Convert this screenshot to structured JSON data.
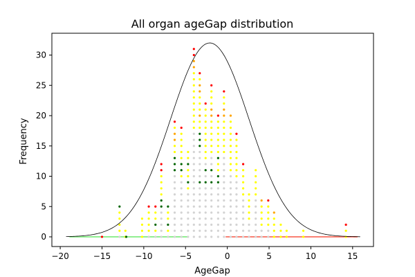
{
  "chart_data": {
    "type": "scatter",
    "title": "All organ ageGap distribution",
    "xlabel": "AgeGap",
    "ylabel": "Frequency",
    "xlim": [
      -21,
      17.5
    ],
    "ylim": [
      -1.6,
      33.6
    ],
    "xticks": [
      -20,
      -15,
      -10,
      -5,
      0,
      5,
      10,
      15
    ],
    "yticks": [
      0,
      5,
      10,
      15,
      20,
      25,
      30
    ],
    "grid": false,
    "legend": "none",
    "fit_curve": {
      "kind": "gaussian",
      "peak": 32,
      "mean": -2.1,
      "sd": 4.7,
      "x_range": [
        -19.3,
        15.9
      ],
      "color": "#000000"
    },
    "colors": {
      "grey": "#d3d3d3",
      "yellow": "#ffff00",
      "orange": "#ffa500",
      "red": "#ff0000",
      "green": "#006400",
      "lightgreen": "#90ee90",
      "salmon": "#fa8072"
    },
    "columns": [
      {
        "x": -12.9,
        "height": 5,
        "top": {
          "color": "green",
          "count": 1
        }
      },
      {
        "x": -12.2,
        "height": 1,
        "top": {
          "color": "yellow",
          "count": 1
        }
      },
      {
        "x": -10.2,
        "height": 3,
        "top": {
          "color": "yellow",
          "count": 1
        }
      },
      {
        "x": -9.4,
        "height": 5,
        "top": {
          "color": "red",
          "count": 1
        }
      },
      {
        "x": -8.6,
        "height": 5,
        "top": {
          "color": "red",
          "count": 1
        },
        "extra": [
          {
            "y": 2,
            "color": "green"
          }
        ]
      },
      {
        "x": -7.9,
        "height": 12,
        "top": {
          "color": "red",
          "count": 2
        },
        "extra": [
          {
            "y": 5,
            "color": "green"
          },
          {
            "y": 6,
            "color": "green"
          }
        ]
      },
      {
        "x": -7.1,
        "height": 5,
        "top": {
          "color": "green",
          "count": 1
        },
        "extra": [
          {
            "y": 2,
            "color": "green"
          }
        ]
      },
      {
        "x": -6.3,
        "height": 19,
        "top": {
          "color": "red",
          "count": 1
        },
        "extra": [
          {
            "y": 17,
            "color": "orange"
          },
          {
            "y": 16,
            "color": "orange"
          },
          {
            "y": 13,
            "color": "green"
          },
          {
            "y": 12,
            "color": "green"
          },
          {
            "y": 11,
            "color": "green"
          }
        ]
      },
      {
        "x": -5.5,
        "height": 18,
        "top": {
          "color": "red",
          "count": 1
        },
        "extra": [
          {
            "y": 12,
            "color": "green"
          },
          {
            "y": 11,
            "color": "green"
          }
        ]
      },
      {
        "x": -4.7,
        "height": 14,
        "top": {
          "color": "yellow",
          "count": 1
        },
        "extra": [
          {
            "y": 12,
            "color": "green"
          },
          {
            "y": 9,
            "color": "green"
          }
        ]
      },
      {
        "x": -4.0,
        "height": 31,
        "top": {
          "color": "red",
          "count": 2
        },
        "extra": [
          {
            "y": 29,
            "color": "orange"
          },
          {
            "y": 28,
            "color": "orange"
          }
        ]
      },
      {
        "x": -3.3,
        "height": 27,
        "top": {
          "color": "red",
          "count": 1
        },
        "extra": [
          {
            "y": 25,
            "color": "orange"
          },
          {
            "y": 24,
            "color": "orange"
          },
          {
            "y": 20,
            "color": "orange"
          },
          {
            "y": 17,
            "color": "green"
          },
          {
            "y": 16,
            "color": "green"
          },
          {
            "y": 15,
            "color": "green"
          },
          {
            "y": 9,
            "color": "green"
          }
        ]
      },
      {
        "x": -2.6,
        "height": 22,
        "top": {
          "color": "red",
          "count": 1
        },
        "extra": [
          {
            "y": 11,
            "color": "green"
          },
          {
            "y": 9,
            "color": "green"
          }
        ]
      },
      {
        "x": -1.9,
        "height": 25,
        "top": {
          "color": "red",
          "count": 1
        },
        "extra": [
          {
            "y": 21,
            "color": "orange"
          },
          {
            "y": 20,
            "color": "orange"
          },
          {
            "y": 11,
            "color": "green"
          },
          {
            "y": 9,
            "color": "green"
          }
        ]
      },
      {
        "x": -1.1,
        "height": 20,
        "top": {
          "color": "red",
          "count": 1
        },
        "extra": [
          {
            "y": 13,
            "color": "green"
          },
          {
            "y": 10,
            "color": "green"
          },
          {
            "y": 9,
            "color": "green"
          }
        ]
      },
      {
        "x": -0.4,
        "height": 24,
        "top": {
          "color": "red",
          "count": 1
        },
        "extra": [
          {
            "y": 21,
            "color": "orange"
          },
          {
            "y": 20,
            "color": "orange"
          }
        ]
      },
      {
        "x": 0.4,
        "height": 20,
        "top": {
          "color": "orange",
          "count": 1
        }
      },
      {
        "x": 1.1,
        "height": 17,
        "top": {
          "color": "red",
          "count": 1
        }
      },
      {
        "x": 1.9,
        "height": 12,
        "top": {
          "color": "red",
          "count": 1
        }
      },
      {
        "x": 2.6,
        "height": 7,
        "top": {
          "color": "yellow",
          "count": 1
        }
      },
      {
        "x": 3.4,
        "height": 11,
        "top": {
          "color": "yellow",
          "count": 1
        }
      },
      {
        "x": 4.1,
        "height": 6,
        "top": {
          "color": "orange",
          "count": 1
        }
      },
      {
        "x": 4.9,
        "height": 6,
        "top": {
          "color": "red",
          "count": 1
        }
      },
      {
        "x": 5.6,
        "height": 4,
        "top": {
          "color": "orange",
          "count": 1
        }
      },
      {
        "x": 6.4,
        "height": 2,
        "top": {
          "color": "yellow",
          "count": 1
        }
      },
      {
        "x": 7.1,
        "height": 1,
        "top": {
          "color": "yellow",
          "count": 1
        }
      },
      {
        "x": 9.1,
        "height": 1,
        "top": {
          "color": "yellow",
          "count": 1
        }
      },
      {
        "x": 14.2,
        "height": 2,
        "top": {
          "color": "red",
          "count": 1
        }
      }
    ],
    "single_points": [
      {
        "x": -15.0,
        "y": 0,
        "color": "red"
      },
      {
        "x": -12.1,
        "y": 0,
        "color": "green"
      }
    ],
    "baseline_bands": [
      {
        "x_start": -18.9,
        "x_end": -4.7,
        "y": 0,
        "color": "lightgreen"
      },
      {
        "x_start": -0.2,
        "x_end": 15.6,
        "y": 0,
        "color": "salmon"
      }
    ]
  }
}
